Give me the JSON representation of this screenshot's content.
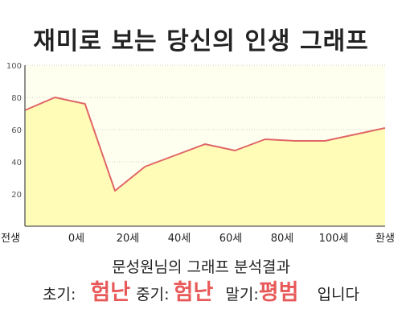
{
  "title": "재미로 보는 당신의 인생 그래프",
  "colors": {
    "plot_background": "#fffff0",
    "area_fill": "#fffcb8",
    "line": "#e06666",
    "grid": "#cccccc",
    "highlight": "#e85a5a"
  },
  "chart_data": {
    "type": "area",
    "title": "",
    "xlabel": "",
    "ylabel": "",
    "x_tick_labels": [
      "전생",
      "0세",
      "20세",
      "40세",
      "60세",
      "80세",
      "100세",
      "환생"
    ],
    "y_ticks": [
      20,
      40,
      60,
      80,
      100
    ],
    "ylim": [
      0,
      100
    ],
    "grid": true,
    "series": [
      {
        "values": [
          72,
          80,
          76,
          22,
          37,
          44,
          51,
          47,
          54,
          53,
          53,
          57,
          61
        ]
      }
    ]
  },
  "summary": {
    "title": "문성원님의 그래프 분석결과",
    "early_label": "초기:",
    "early_value": "험난",
    "middle_label": "중기:",
    "middle_value": "험난",
    "late_label": "말기:",
    "late_value": "평범",
    "suffix": "입니다"
  }
}
